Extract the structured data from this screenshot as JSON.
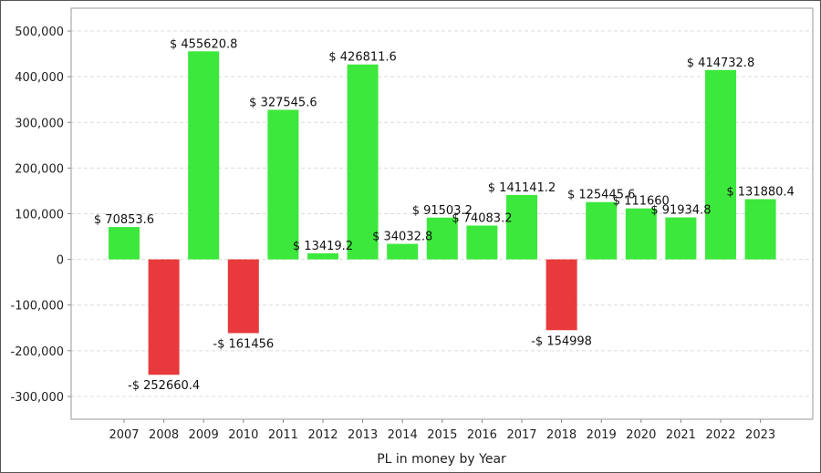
{
  "chart_data": {
    "type": "bar",
    "xlabel": "PL in money by Year",
    "ylabel": "",
    "ylim": [
      -350000,
      550000
    ],
    "yticks": [
      -300000,
      -200000,
      -100000,
      0,
      100000,
      200000,
      300000,
      400000,
      500000
    ],
    "ytick_labels": [
      "-300,000",
      "-200,000",
      "-100,000",
      "0",
      "100,000",
      "200,000",
      "300,000",
      "400,000",
      "500,000"
    ],
    "grid": true,
    "categories": [
      "2007",
      "2008",
      "2009",
      "2010",
      "2011",
      "2012",
      "2013",
      "2014",
      "2015",
      "2016",
      "2017",
      "2018",
      "2019",
      "2020",
      "2021",
      "2022",
      "2023"
    ],
    "values": [
      70853.6,
      -252660.4,
      455620.8,
      -161456,
      327545.6,
      13419.2,
      426811.6,
      34032.8,
      91503.2,
      74083.2,
      141141.2,
      -154998,
      125445.6,
      111660,
      91934.8,
      414732.8,
      131880.4
    ],
    "data_labels": [
      "$ 70853.6",
      "-$ 252660.4",
      "$ 455620.8",
      "-$ 161456",
      "$ 327545.6",
      "$ 13419.2",
      "$ 426811.6",
      "$ 34032.8",
      "$ 91503.2",
      "$ 74083.2",
      "$ 141141.2",
      "-$ 154998",
      "$ 125445.6",
      "$ 111660",
      "$ 91934.8",
      "$ 414732.8",
      "$ 131880.4"
    ],
    "colors": {
      "positive": "#3de83d",
      "negative": "#e8393c",
      "grid": "#dcdcdc",
      "axis": "#888888"
    }
  }
}
